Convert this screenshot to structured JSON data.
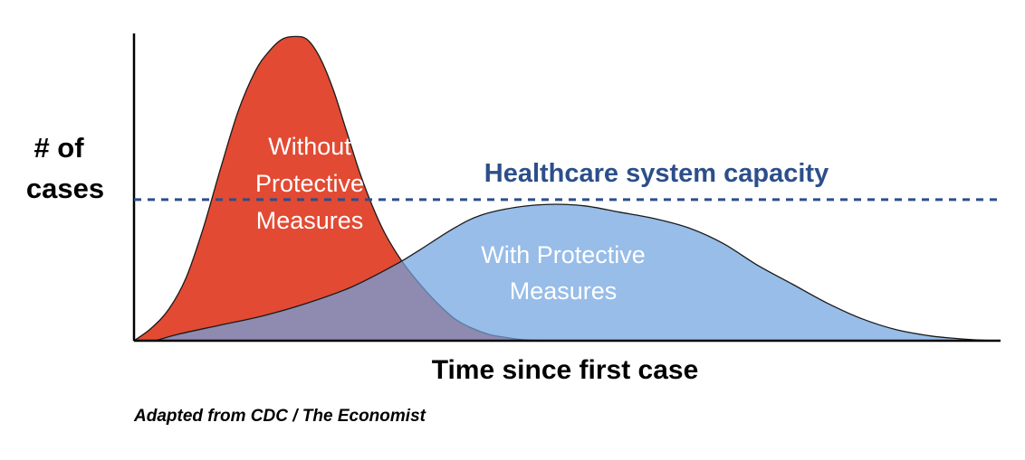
{
  "chart_data": {
    "type": "area",
    "title": "",
    "xlabel": "Time since first case",
    "ylabel_lines": [
      "# of",
      "cases"
    ],
    "source": "Adapted from CDC / The Economist",
    "x_range": [
      0,
      100
    ],
    "y_range": [
      0,
      100
    ],
    "grid": false,
    "legend": "none",
    "capacity": {
      "label": "Healthcare system capacity",
      "value": 45,
      "color": "#2c4f8a"
    },
    "series": [
      {
        "label_lines": [
          "Without",
          "Protective",
          "Measures"
        ],
        "color": "#e24a33",
        "x": [
          0,
          2,
          4,
          6,
          8,
          10,
          12,
          14,
          15.5,
          17,
          18.5,
          20,
          21.5,
          23,
          24.5,
          26,
          27.5,
          29,
          31,
          33,
          35,
          37,
          39,
          41,
          43,
          45,
          47.5
        ],
        "y": [
          0,
          4,
          10,
          20,
          36,
          55,
          73,
          86,
          92,
          96,
          97,
          96,
          90,
          80,
          67,
          54,
          43,
          34,
          25,
          18,
          12,
          7,
          4,
          2,
          1,
          0.3,
          0
        ]
      },
      {
        "label_lines": [
          "With Protective",
          "Measures"
        ],
        "color": "#6fa3df",
        "x": [
          2.5,
          5,
          10,
          15,
          20,
          25,
          30,
          33,
          37,
          40,
          44,
          48,
          52,
          56,
          60,
          64,
          68,
          72,
          76,
          80,
          84,
          88,
          92,
          95,
          97,
          99.5
        ],
        "y": [
          0,
          2,
          5,
          8,
          12,
          17,
          24,
          29,
          36,
          40,
          42.5,
          43.5,
          43,
          41,
          39,
          36,
          31,
          24,
          18,
          12,
          7,
          3.5,
          1.5,
          0.7,
          0.3,
          0
        ]
      }
    ]
  }
}
